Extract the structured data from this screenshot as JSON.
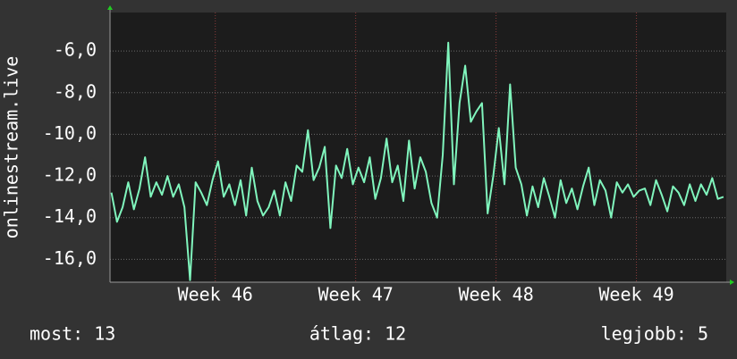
{
  "chart_data": {
    "type": "line",
    "y_label": "onlinestream.live",
    "x": [
      45.26,
      45.3,
      45.34,
      45.38,
      45.42,
      45.46,
      45.5,
      45.54,
      45.58,
      45.62,
      45.66,
      45.7,
      45.74,
      45.78,
      45.82,
      45.86,
      45.9,
      45.94,
      45.98,
      46.02,
      46.06,
      46.1,
      46.14,
      46.18,
      46.22,
      46.26,
      46.3,
      46.34,
      46.38,
      46.42,
      46.46,
      46.5,
      46.54,
      46.58,
      46.62,
      46.66,
      46.7,
      46.74,
      46.78,
      46.82,
      46.86,
      46.9,
      46.94,
      46.98,
      47.02,
      47.06,
      47.1,
      47.14,
      47.18,
      47.22,
      47.26,
      47.3,
      47.34,
      47.38,
      47.42,
      47.46,
      47.5,
      47.54,
      47.58,
      47.62,
      47.66,
      47.7,
      47.74,
      47.78,
      47.82,
      47.86,
      47.9,
      47.94,
      47.98,
      48.02,
      48.06,
      48.1,
      48.14,
      48.18,
      48.22,
      48.26,
      48.3,
      48.34,
      48.38,
      48.42,
      48.46,
      48.5,
      48.54,
      48.58,
      48.62,
      48.66,
      48.7,
      48.74,
      48.78,
      48.82,
      48.86,
      48.9,
      48.94,
      48.98,
      49.02,
      49.06,
      49.1,
      49.14,
      49.18,
      49.22,
      49.26,
      49.3,
      49.34,
      49.38,
      49.42,
      49.46,
      49.5,
      49.54,
      49.58,
      49.62
    ],
    "series": [
      {
        "color": "#80f5bd",
        "values": [
          -12.8,
          -14.2,
          -13.5,
          -12.3,
          -13.6,
          -12.6,
          -11.1,
          -13.0,
          -12.3,
          -12.9,
          -12.0,
          -13.0,
          -12.4,
          -13.5,
          -17.0,
          -12.3,
          -12.8,
          -13.4,
          -12.2,
          -11.3,
          -13.0,
          -12.4,
          -13.4,
          -12.2,
          -13.9,
          -11.6,
          -13.2,
          -13.9,
          -13.5,
          -12.7,
          -13.9,
          -12.3,
          -13.2,
          -11.5,
          -11.8,
          -9.8,
          -12.2,
          -11.6,
          -10.6,
          -14.5,
          -11.5,
          -12.1,
          -10.7,
          -12.4,
          -11.6,
          -12.3,
          -11.1,
          -13.1,
          -12.1,
          -10.2,
          -12.3,
          -11.5,
          -13.2,
          -10.3,
          -12.6,
          -11.1,
          -11.8,
          -13.3,
          -14.0,
          -11.0,
          -5.6,
          -12.4,
          -8.5,
          -6.7,
          -9.4,
          -8.9,
          -8.5,
          -13.8,
          -12.0,
          -9.7,
          -12.4,
          -7.6,
          -11.6,
          -12.4,
          -13.9,
          -12.5,
          -13.5,
          -12.1,
          -13.0,
          -14.0,
          -12.2,
          -13.3,
          -12.6,
          -13.6,
          -12.5,
          -11.6,
          -13.4,
          -12.2,
          -12.7,
          -14.0,
          -12.3,
          -12.8,
          -12.4,
          -13.0,
          -12.7,
          -12.6,
          -13.4,
          -12.2,
          -12.9,
          -13.7,
          -12.5,
          -12.8,
          -13.4,
          -12.4,
          -13.2,
          -12.4,
          -12.9,
          -12.1,
          -13.1,
          -13.0
        ]
      }
    ],
    "xlim": [
      45.25,
      49.64
    ],
    "xticks": [
      {
        "value": 46,
        "label": "Week 46"
      },
      {
        "value": 47,
        "label": "Week 47"
      },
      {
        "value": 48,
        "label": "Week 48"
      },
      {
        "value": 49,
        "label": "Week 49"
      }
    ],
    "ylim": [
      -17.1,
      -4.15
    ],
    "yticks": [
      {
        "value": -16,
        "label": "-16,0"
      },
      {
        "value": -14,
        "label": "-14,0"
      },
      {
        "value": -12,
        "label": "-12,0"
      },
      {
        "value": -10,
        "label": "-10,0"
      },
      {
        "value": -8,
        "label": "-8,0"
      },
      {
        "value": -6,
        "label": "-6,0"
      }
    ],
    "grid": true,
    "footer": [
      "most: 13",
      "átlag: 12",
      "legjobb: 5"
    ]
  }
}
